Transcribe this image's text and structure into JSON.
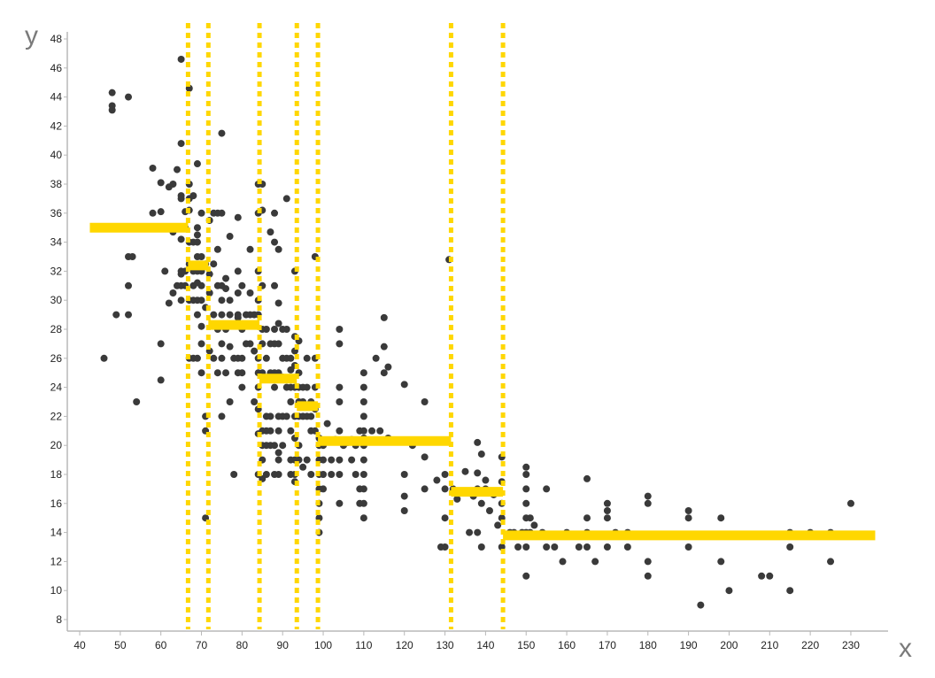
{
  "chart_data": {
    "type": "scatter",
    "title": "",
    "xlabel": "x",
    "ylabel": "y",
    "xlim": [
      37,
      239
    ],
    "ylim": [
      7.2,
      48.3
    ],
    "x_ticks": [
      40,
      50,
      60,
      70,
      80,
      90,
      100,
      110,
      120,
      130,
      140,
      150,
      160,
      170,
      180,
      190,
      200,
      210,
      220,
      230
    ],
    "y_ticks": [
      8,
      10,
      12,
      14,
      16,
      18,
      20,
      22,
      24,
      26,
      28,
      30,
      32,
      34,
      36,
      38,
      40,
      42,
      44,
      46,
      48
    ],
    "grid": false,
    "legend": null,
    "colors": {
      "points": "#3a3a3a",
      "fit": "#FFD700",
      "axis": "#b8b8b8",
      "axis_title": "#7a7a7a"
    },
    "breakpoints": [
      66.7,
      71.7,
      84.3,
      93.5,
      98.7,
      131.5,
      144.3
    ],
    "step_segments": [
      {
        "x0": 42.5,
        "x1": 66.7,
        "y": 35.0
      },
      {
        "x0": 66.7,
        "x1": 71.7,
        "y": 32.4
      },
      {
        "x0": 71.7,
        "x1": 84.3,
        "y": 28.3
      },
      {
        "x0": 84.3,
        "x1": 93.5,
        "y": 24.6
      },
      {
        "x0": 93.5,
        "x1": 98.7,
        "y": 22.7
      },
      {
        "x0": 98.7,
        "x1": 131.5,
        "y": 20.3
      },
      {
        "x0": 131.5,
        "x1": 144.3,
        "y": 16.8
      },
      {
        "x0": 144.3,
        "x1": 236.0,
        "y": 13.8
      }
    ],
    "points": [
      [
        46,
        26
      ],
      [
        48,
        44.3
      ],
      [
        48,
        43.4
      ],
      [
        48,
        43.1
      ],
      [
        49,
        29
      ],
      [
        52,
        44
      ],
      [
        52,
        33
      ],
      [
        52,
        31
      ],
      [
        52,
        29
      ],
      [
        53,
        33
      ],
      [
        54,
        23
      ],
      [
        58,
        39.1
      ],
      [
        58,
        36
      ],
      [
        60,
        38.1
      ],
      [
        60,
        36.1
      ],
      [
        60,
        27
      ],
      [
        60,
        24.5
      ],
      [
        61,
        32
      ],
      [
        62,
        29.8
      ],
      [
        62,
        37.8
      ],
      [
        63,
        30.5
      ],
      [
        63,
        38
      ],
      [
        63,
        34.7
      ],
      [
        64,
        39
      ],
      [
        64,
        31
      ],
      [
        65,
        46.6
      ],
      [
        65,
        40.8
      ],
      [
        65,
        37.2
      ],
      [
        65,
        37
      ],
      [
        65,
        35
      ],
      [
        65,
        34.2
      ],
      [
        65,
        32
      ],
      [
        65,
        31.8
      ],
      [
        65,
        31
      ],
      [
        65,
        30
      ],
      [
        66,
        36.1
      ],
      [
        66,
        35
      ],
      [
        66,
        32
      ],
      [
        66,
        31
      ],
      [
        67,
        44.6
      ],
      [
        67,
        38
      ],
      [
        67,
        37
      ],
      [
        67,
        36.2
      ],
      [
        67,
        34
      ],
      [
        67,
        32.5
      ],
      [
        67,
        30
      ],
      [
        67,
        26
      ],
      [
        68,
        37.2
      ],
      [
        68,
        34
      ],
      [
        68,
        32
      ],
      [
        68,
        31
      ],
      [
        68,
        30
      ],
      [
        68,
        26
      ],
      [
        69,
        39.4
      ],
      [
        69,
        35
      ],
      [
        69,
        34.5
      ],
      [
        69,
        34
      ],
      [
        69,
        33
      ],
      [
        69,
        32
      ],
      [
        69,
        31.2
      ],
      [
        69,
        30
      ],
      [
        69,
        29
      ],
      [
        69,
        26
      ],
      [
        70,
        36
      ],
      [
        70,
        33
      ],
      [
        70,
        32
      ],
      [
        70,
        31
      ],
      [
        70,
        30
      ],
      [
        70,
        28.2
      ],
      [
        70,
        27
      ],
      [
        70,
        25
      ],
      [
        71,
        32.5
      ],
      [
        71,
        29.5
      ],
      [
        71,
        22
      ],
      [
        71,
        21
      ],
      [
        71,
        15
      ],
      [
        72,
        35.5
      ],
      [
        72,
        31.8
      ],
      [
        72,
        30.5
      ],
      [
        72,
        26.5
      ],
      [
        73,
        36
      ],
      [
        73,
        32.5
      ],
      [
        73,
        29
      ],
      [
        73,
        26
      ],
      [
        74,
        36
      ],
      [
        74,
        33.5
      ],
      [
        74,
        31
      ],
      [
        74,
        28
      ],
      [
        74,
        25
      ],
      [
        75,
        41.5
      ],
      [
        75,
        36
      ],
      [
        75,
        31
      ],
      [
        75,
        30
      ],
      [
        75,
        29
      ],
      [
        75,
        27
      ],
      [
        75,
        26
      ],
      [
        75,
        22
      ],
      [
        76,
        31.5
      ],
      [
        76,
        30.8
      ],
      [
        76,
        28
      ],
      [
        76,
        25
      ],
      [
        77,
        34.4
      ],
      [
        77,
        30
      ],
      [
        77,
        29
      ],
      [
        77,
        26.8
      ],
      [
        77,
        23
      ],
      [
        78,
        26
      ],
      [
        78,
        18
      ],
      [
        79,
        35.7
      ],
      [
        79,
        32
      ],
      [
        79,
        30.5
      ],
      [
        79,
        29
      ],
      [
        79,
        28.8
      ],
      [
        79,
        26
      ],
      [
        79,
        25
      ],
      [
        80,
        31
      ],
      [
        80,
        28
      ],
      [
        80,
        26
      ],
      [
        80,
        25
      ],
      [
        80,
        24
      ],
      [
        81,
        29
      ],
      [
        81,
        27
      ],
      [
        82,
        30.5
      ],
      [
        82,
        33.5
      ],
      [
        82,
        29
      ],
      [
        82,
        27
      ],
      [
        83,
        29
      ],
      [
        83,
        23
      ],
      [
        83,
        26.5
      ],
      [
        84,
        38
      ],
      [
        84,
        36
      ],
      [
        84,
        32
      ],
      [
        84,
        30
      ],
      [
        84,
        29
      ],
      [
        84,
        26
      ],
      [
        84,
        25
      ],
      [
        84,
        24
      ],
      [
        84,
        22.5
      ],
      [
        84,
        20.8
      ],
      [
        84,
        18
      ],
      [
        85,
        38
      ],
      [
        85,
        36.2
      ],
      [
        85,
        31
      ],
      [
        85,
        28
      ],
      [
        85,
        27
      ],
      [
        85,
        25
      ],
      [
        85,
        21
      ],
      [
        85,
        20
      ],
      [
        85,
        19
      ],
      [
        85,
        17.7
      ],
      [
        86,
        28
      ],
      [
        86,
        26
      ],
      [
        86,
        22
      ],
      [
        86,
        21
      ],
      [
        86,
        20
      ],
      [
        86,
        18
      ],
      [
        87,
        34.7
      ],
      [
        87,
        27
      ],
      [
        87,
        25
      ],
      [
        87,
        22
      ],
      [
        87,
        21
      ],
      [
        87,
        20
      ],
      [
        88,
        36
      ],
      [
        88,
        34
      ],
      [
        88,
        31
      ],
      [
        88,
        28
      ],
      [
        88,
        27
      ],
      [
        88,
        25
      ],
      [
        88,
        24
      ],
      [
        88,
        20
      ],
      [
        88,
        18
      ],
      [
        89,
        33.5
      ],
      [
        89,
        29.8
      ],
      [
        89,
        28.4
      ],
      [
        89,
        27
      ],
      [
        89,
        25
      ],
      [
        89,
        22
      ],
      [
        89,
        21
      ],
      [
        89,
        19.5
      ],
      [
        89,
        19
      ],
      [
        89,
        18
      ],
      [
        90,
        28
      ],
      [
        90,
        26
      ],
      [
        90,
        24.7
      ],
      [
        90,
        22
      ],
      [
        90,
        20
      ],
      [
        91,
        37
      ],
      [
        91,
        28
      ],
      [
        91,
        26
      ],
      [
        91,
        24
      ],
      [
        91,
        22
      ],
      [
        92,
        26
      ],
      [
        92,
        25.2
      ],
      [
        92,
        24
      ],
      [
        92,
        23
      ],
      [
        92,
        21
      ],
      [
        92,
        19
      ],
      [
        92,
        18
      ],
      [
        93,
        32
      ],
      [
        93,
        27.5
      ],
      [
        93,
        26.5
      ],
      [
        93,
        25.5
      ],
      [
        93,
        24
      ],
      [
        93,
        22
      ],
      [
        93,
        20.5
      ],
      [
        93,
        19
      ],
      [
        93,
        18
      ],
      [
        93,
        17.5
      ],
      [
        94,
        27.2
      ],
      [
        94,
        25
      ],
      [
        94,
        24
      ],
      [
        94,
        23
      ],
      [
        94,
        22
      ],
      [
        94,
        20
      ],
      [
        94,
        19
      ],
      [
        95,
        24
      ],
      [
        95,
        23
      ],
      [
        95,
        22
      ],
      [
        95,
        18.5
      ],
      [
        96,
        26
      ],
      [
        96,
        24
      ],
      [
        96,
        22
      ],
      [
        96,
        19
      ],
      [
        97,
        22
      ],
      [
        97,
        23
      ],
      [
        97,
        21
      ],
      [
        97,
        18
      ],
      [
        98,
        33
      ],
      [
        98,
        26
      ],
      [
        98,
        24
      ],
      [
        98,
        22.5
      ],
      [
        98,
        21
      ],
      [
        99,
        20.5
      ],
      [
        99,
        20
      ],
      [
        99,
        19
      ],
      [
        99,
        18
      ],
      [
        99,
        17
      ],
      [
        99,
        16
      ],
      [
        99,
        15
      ],
      [
        99,
        14
      ],
      [
        100,
        20
      ],
      [
        100,
        19
      ],
      [
        100,
        18
      ],
      [
        100,
        17
      ],
      [
        101,
        21.5
      ],
      [
        102,
        19
      ],
      [
        102,
        18
      ],
      [
        103,
        20.4
      ],
      [
        104,
        19
      ],
      [
        104,
        27
      ],
      [
        104,
        28
      ],
      [
        104,
        24
      ],
      [
        104,
        23
      ],
      [
        104,
        21
      ],
      [
        104,
        18
      ],
      [
        104,
        16
      ],
      [
        105,
        20
      ],
      [
        106,
        20.2
      ],
      [
        107,
        20.4
      ],
      [
        107,
        19
      ],
      [
        108,
        18
      ],
      [
        108,
        20
      ],
      [
        109,
        21
      ],
      [
        109,
        17
      ],
      [
        109,
        16
      ],
      [
        110,
        25
      ],
      [
        110,
        24
      ],
      [
        110,
        23
      ],
      [
        110,
        22
      ],
      [
        110,
        21
      ],
      [
        110,
        20.5
      ],
      [
        110,
        20
      ],
      [
        110,
        19
      ],
      [
        110,
        18
      ],
      [
        110,
        17
      ],
      [
        110,
        16
      ],
      [
        110,
        15
      ],
      [
        112,
        21
      ],
      [
        113,
        26
      ],
      [
        114,
        21
      ],
      [
        115,
        28.8
      ],
      [
        115,
        26.8
      ],
      [
        115,
        25
      ],
      [
        116,
        25.4
      ],
      [
        116,
        20.5
      ],
      [
        120,
        24.2
      ],
      [
        120,
        18
      ],
      [
        120,
        16.5
      ],
      [
        120,
        15.5
      ],
      [
        122,
        20
      ],
      [
        125,
        23
      ],
      [
        125,
        19.2
      ],
      [
        125,
        17
      ],
      [
        128,
        17.6
      ],
      [
        129,
        13
      ],
      [
        130,
        18
      ],
      [
        130,
        17
      ],
      [
        130,
        15
      ],
      [
        130,
        13
      ],
      [
        131,
        32.8
      ],
      [
        132,
        17
      ],
      [
        133,
        16.3
      ],
      [
        135,
        18.2
      ],
      [
        136,
        14
      ],
      [
        137,
        16.5
      ],
      [
        138,
        20.2
      ],
      [
        138,
        18.1
      ],
      [
        138,
        17
      ],
      [
        138,
        14
      ],
      [
        139,
        19.4
      ],
      [
        139,
        16
      ],
      [
        139,
        13
      ],
      [
        140,
        17.6
      ],
      [
        140,
        17
      ],
      [
        141,
        15.5
      ],
      [
        142,
        16.6
      ],
      [
        143,
        14.5
      ],
      [
        144,
        19.2
      ],
      [
        144,
        17.5
      ],
      [
        144,
        16
      ],
      [
        144,
        15
      ],
      [
        144,
        13
      ],
      [
        146,
        14
      ],
      [
        147,
        14
      ],
      [
        148,
        13
      ],
      [
        149,
        14
      ],
      [
        150,
        18.5
      ],
      [
        150,
        17
      ],
      [
        150,
        16
      ],
      [
        150,
        15
      ],
      [
        150,
        14
      ],
      [
        150,
        13
      ],
      [
        150,
        11
      ],
      [
        150,
        18
      ],
      [
        151,
        15
      ],
      [
        151,
        14
      ],
      [
        152,
        14.5
      ],
      [
        154,
        14
      ],
      [
        155,
        13
      ],
      [
        155,
        17
      ],
      [
        157,
        13
      ],
      [
        159,
        12
      ],
      [
        160,
        14
      ],
      [
        163,
        13
      ],
      [
        165,
        17.7
      ],
      [
        165,
        15
      ],
      [
        165,
        14
      ],
      [
        165,
        13
      ],
      [
        167,
        12
      ],
      [
        170,
        16
      ],
      [
        170,
        15
      ],
      [
        170,
        15.5
      ],
      [
        170,
        13
      ],
      [
        172,
        14
      ],
      [
        175,
        14
      ],
      [
        175,
        13
      ],
      [
        180,
        16.5
      ],
      [
        180,
        16
      ],
      [
        180,
        12
      ],
      [
        180,
        11
      ],
      [
        190,
        15.5
      ],
      [
        190,
        15
      ],
      [
        190,
        13
      ],
      [
        193,
        9
      ],
      [
        198,
        15
      ],
      [
        198,
        12
      ],
      [
        200,
        10
      ],
      [
        208,
        11
      ],
      [
        210,
        11
      ],
      [
        215,
        14
      ],
      [
        215,
        13
      ],
      [
        215,
        10
      ],
      [
        220,
        14
      ],
      [
        225,
        14
      ],
      [
        225,
        12
      ],
      [
        230,
        16
      ]
    ]
  }
}
